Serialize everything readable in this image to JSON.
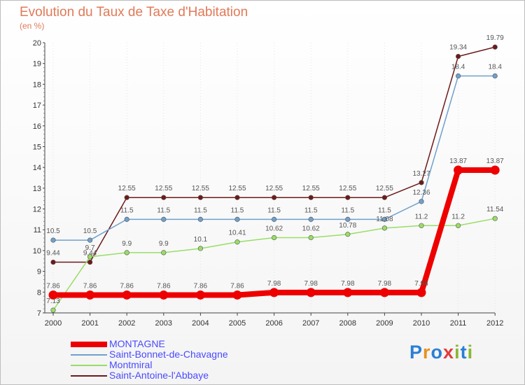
{
  "header": {
    "title": "Evolution du Taux de Taxe d'Habitation",
    "subtitle": "(en %)"
  },
  "brand": {
    "text": "Proxiti",
    "letters": [
      {
        "ch": "P",
        "color": "#2a7fd4"
      },
      {
        "ch": "r",
        "color": "#e8901f"
      },
      {
        "ch": "o",
        "color": "#2a7fd4"
      },
      {
        "ch": "x",
        "color": "#e23b3b"
      },
      {
        "ch": "i",
        "color": "#8ab834"
      },
      {
        "ch": "t",
        "color": "#2a7fd4"
      },
      {
        "ch": "i",
        "color": "#8ab834"
      }
    ]
  },
  "chart_data": {
    "type": "line",
    "title": "Evolution du Taux de Taxe d'Habitation",
    "ylabel": "(en %)",
    "xlabel": "",
    "ylim": [
      7,
      20
    ],
    "yticks": [
      7,
      8,
      9,
      10,
      11,
      12,
      13,
      14,
      15,
      16,
      17,
      18,
      19,
      20
    ],
    "x": [
      "2000",
      "2001",
      "2002",
      "2003",
      "2004",
      "2005",
      "2006",
      "2007",
      "2008",
      "2009",
      "2010",
      "2011",
      "2012"
    ],
    "legend_position": "bottom-left",
    "series": [
      {
        "name": "Saint-Antoine-l'Abbaye",
        "color": "#6e1a1a",
        "values": [
          9.44,
          9.44,
          12.55,
          12.55,
          12.55,
          12.55,
          12.55,
          12.55,
          12.55,
          12.55,
          13.27,
          19.34,
          19.79
        ],
        "labels": [
          "9.44",
          "9.44",
          "12.55",
          "12.55",
          "12.55",
          "12.55",
          "12.55",
          "12.55",
          "12.55",
          "12.55",
          "13.27",
          "19.34",
          "19.79"
        ]
      },
      {
        "name": "Saint-Bonnet-de-Chavagne",
        "color": "#6ea1cc",
        "values": [
          10.5,
          10.5,
          11.5,
          11.5,
          11.5,
          11.5,
          11.5,
          11.5,
          11.5,
          11.5,
          12.36,
          18.4,
          18.4
        ],
        "labels": [
          "10.5",
          "10.5",
          "11.5",
          "11.5",
          "11.5",
          "11.5",
          "11.5",
          "11.5",
          "11.5",
          "11.5",
          "12.36",
          "18.4",
          "18.4"
        ]
      },
      {
        "name": "Montmiral",
        "color": "#99dd66",
        "values": [
          7.13,
          9.7,
          9.9,
          9.9,
          10.1,
          10.41,
          10.62,
          10.62,
          10.78,
          11.08,
          11.2,
          11.2,
          11.54
        ],
        "labels": [
          "7.13",
          "9.7",
          "9.9",
          "9.9",
          "10.1",
          "10.41",
          "10.62",
          "10.62",
          "10.78",
          "11.08",
          "11.2",
          "11.2",
          "11.54"
        ]
      },
      {
        "name": "MONTAGNE",
        "color": "#ee0000",
        "values": [
          7.86,
          7.86,
          7.86,
          7.86,
          7.86,
          7.86,
          7.98,
          7.98,
          7.98,
          7.98,
          7.98,
          13.87,
          13.87
        ],
        "labels": [
          "7.86",
          "7.86",
          "7.86",
          "7.86",
          "7.86",
          "7.86",
          "7.98",
          "7.98",
          "7.98",
          "7.98",
          "7.98",
          "13.87",
          "13.87"
        ]
      }
    ],
    "legend_order": [
      "MONTAGNE",
      "Saint-Bonnet-de-Chavagne",
      "Montmiral",
      "Saint-Antoine-l'Abbaye"
    ]
  }
}
